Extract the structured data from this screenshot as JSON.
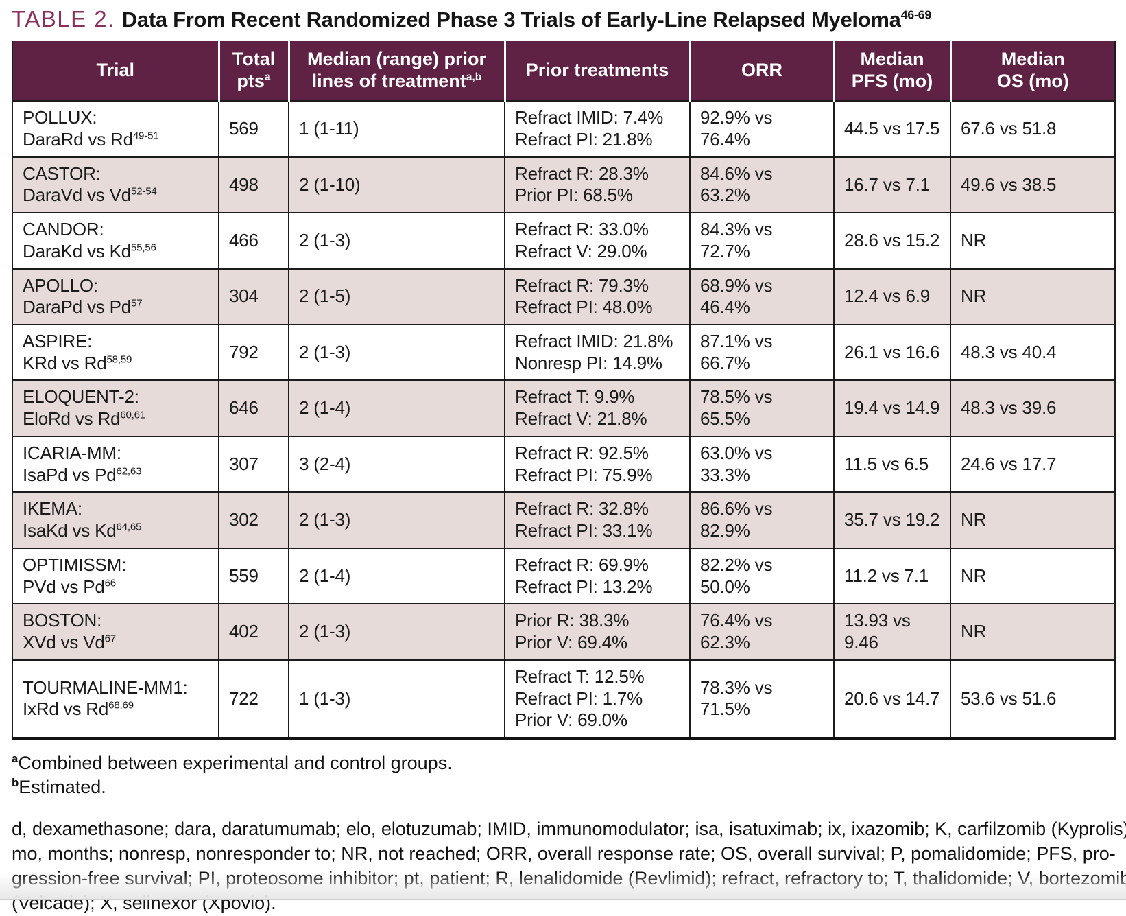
{
  "colors": {
    "header_bg": "#5f2144",
    "stripe_bg": "#e6dbd9",
    "table_label_color": "#8b2f60",
    "border": "#1c1c1c"
  },
  "title": {
    "label": "TABLE 2.",
    "text": "Data From Recent Randomized Phase 3 Trials of Early-Line Relapsed Myeloma",
    "sup": "46-69"
  },
  "table": {
    "columns": [
      {
        "label": "Trial",
        "sup": ""
      },
      {
        "label": "Total\npts",
        "sup": "a"
      },
      {
        "label": "Median (range) prior\nlines of treatment",
        "sup": "a,b"
      },
      {
        "label": "Prior treatments",
        "sup": ""
      },
      {
        "label": "ORR",
        "sup": ""
      },
      {
        "label": "Median\nPFS (mo)",
        "sup": ""
      },
      {
        "label": "Median\nOS (mo)",
        "sup": ""
      }
    ],
    "rows": [
      {
        "trial_name": "POLLUX:",
        "regimen": "DaraRd vs Rd",
        "ref": "49-51",
        "total_pts": "569",
        "median_lines": "1 (1-11)",
        "prior_treatments": [
          "Refract IMID: 7.4%",
          "Refract PI: 21.8%"
        ],
        "orr": "92.9% vs 76.4%",
        "pfs": "44.5 vs 17.5",
        "os": "67.6 vs 51.8",
        "striped": false
      },
      {
        "trial_name": "CASTOR:",
        "regimen": "DaraVd vs Vd",
        "ref": "52-54",
        "total_pts": "498",
        "median_lines": "2 (1-10)",
        "prior_treatments": [
          "Refract R: 28.3%",
          "Prior PI: 68.5%"
        ],
        "orr": "84.6% vs 63.2%",
        "pfs": "16.7 vs 7.1",
        "os": "49.6 vs 38.5",
        "striped": true
      },
      {
        "trial_name": "CANDOR:",
        "regimen": "DaraKd vs Kd",
        "ref": "55,56",
        "total_pts": "466",
        "median_lines": "2 (1-3)",
        "prior_treatments": [
          "Refract R: 33.0%",
          "Refract V: 29.0%"
        ],
        "orr": "84.3% vs 72.7%",
        "pfs": "28.6 vs 15.2",
        "os": "NR",
        "striped": false
      },
      {
        "trial_name": "APOLLO:",
        "regimen": "DaraPd vs Pd",
        "ref": "57",
        "total_pts": "304",
        "median_lines": "2 (1-5)",
        "prior_treatments": [
          "Refract R: 79.3%",
          "Refract PI: 48.0%"
        ],
        "orr": "68.9% vs 46.4%",
        "pfs": "12.4 vs 6.9",
        "os": "NR",
        "striped": true
      },
      {
        "trial_name": "ASPIRE:",
        "regimen": "KRd vs Rd",
        "ref": "58,59",
        "total_pts": "792",
        "median_lines": "2 (1-3)",
        "prior_treatments": [
          "Refract IMID: 21.8%",
          "Nonresp PI: 14.9%"
        ],
        "orr": "87.1% vs 66.7%",
        "pfs": "26.1 vs 16.6",
        "os": "48.3 vs 40.4",
        "striped": false
      },
      {
        "trial_name": "ELOQUENT-2:",
        "regimen": "EloRd vs Rd",
        "ref": "60,61",
        "total_pts": "646",
        "median_lines": "2 (1-4)",
        "prior_treatments": [
          "Refract T: 9.9%",
          "Refract V: 21.8%"
        ],
        "orr": "78.5% vs 65.5%",
        "pfs": "19.4 vs 14.9",
        "os": "48.3 vs 39.6",
        "striped": true
      },
      {
        "trial_name": "ICARIA-MM:",
        "regimen": "IsaPd vs Pd",
        "ref": "62,63",
        "total_pts": "307",
        "median_lines": "3 (2-4)",
        "prior_treatments": [
          "Refract R: 92.5%",
          "Refract PI: 75.9%"
        ],
        "orr": "63.0% vs 33.3%",
        "pfs": "11.5 vs 6.5",
        "os": "24.6 vs 17.7",
        "striped": false
      },
      {
        "trial_name": "IKEMA:",
        "regimen": "IsaKd vs Kd",
        "ref": "64,65",
        "total_pts": "302",
        "median_lines": "2 (1-3)",
        "prior_treatments": [
          "Refract R: 32.8%",
          "Refract PI: 33.1%"
        ],
        "orr": "86.6% vs 82.9%",
        "pfs": "35.7 vs 19.2",
        "os": "NR",
        "striped": true
      },
      {
        "trial_name": "OPTIMISSM:",
        "regimen": "PVd vs Pd",
        "ref": "66",
        "total_pts": "559",
        "median_lines": "2 (1-4)",
        "prior_treatments": [
          "Refract R: 69.9%",
          "Refract PI: 13.2%"
        ],
        "orr": "82.2% vs 50.0%",
        "pfs": "11.2 vs 7.1",
        "os": "NR",
        "striped": false
      },
      {
        "trial_name": "BOSTON:",
        "regimen": "XVd vs Vd",
        "ref": "67",
        "total_pts": "402",
        "median_lines": "2 (1-3)",
        "prior_treatments": [
          "Prior R: 38.3%",
          "Prior V: 69.4%"
        ],
        "orr": "76.4% vs 62.3%",
        "pfs": "13.93 vs 9.46",
        "os": "NR",
        "striped": true
      },
      {
        "trial_name": "TOURMALINE-MM1:",
        "regimen": "IxRd vs Rd",
        "ref": "68,69",
        "total_pts": "722",
        "median_lines": "1 (1-3)",
        "prior_treatments": [
          "Refract T: 12.5%",
          "Refract PI: 1.7%",
          "Prior V: 69.0%"
        ],
        "orr": "78.3% vs 71.5%",
        "pfs": "20.6 vs 14.7",
        "os": "53.6 vs 51.6",
        "striped": false
      }
    ]
  },
  "footnotes": {
    "a_marker": "a",
    "a_text": "Combined between experimental and control groups.",
    "b_marker": "b",
    "b_text": "Estimated.",
    "abbrev_lines": [
      "d, dexamethasone; dara, daratumumab; elo, elotuzumab; IMID, immunomodulator; isa, isatuximab; ix, ixazomib; K, carfilzomib (Kyprolis);",
      "mo, months; nonresp, nonresponder to; NR, not reached; ORR, overall response rate; OS, overall survival; P, pomalidomide; PFS, pro-",
      "gression-free survival; PI, proteosome inhibitor; pt, patient; R, lenalidomide (Revlimid); refract, refractory to; T, thalidomide; V, bortezomib",
      "(Velcade); X, selinexor (Xpovio)."
    ]
  }
}
